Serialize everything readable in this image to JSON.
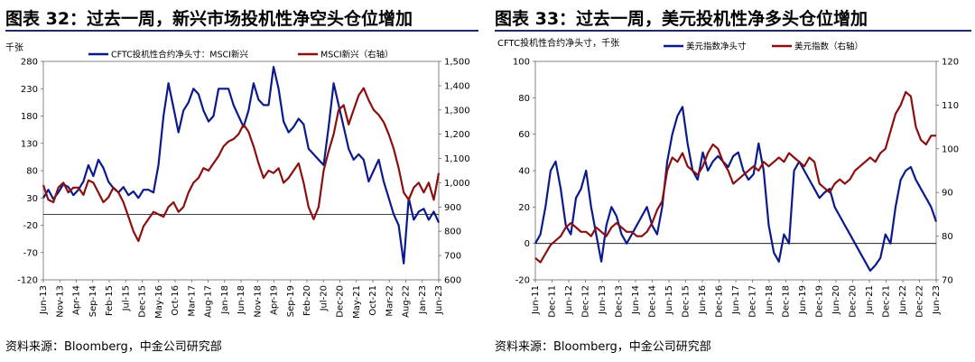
{
  "chart_data": [
    {
      "type": "line",
      "title": "图表 32：过去一周，新兴市场投机性净空头仓位增加",
      "source": "资料来源：Bloomberg，中金公司研究部",
      "y_unit_left": "千张",
      "x_tick_labels": [
        "Jun-13",
        "Nov-13",
        "Apr-14",
        "Sep-14",
        "Feb-15",
        "Jul-15",
        "Dec-15",
        "May-16",
        "Oct-16",
        "Mar-17",
        "Aug-17",
        "Jan-18",
        "Jun-18",
        "Nov-18",
        "Apr-19",
        "Sep-19",
        "Feb-20",
        "Jul-20",
        "Dec-20",
        "May-21",
        "Oct-21",
        "Mar-22",
        "Aug-22",
        "Jan-23",
        "Jun-23"
      ],
      "y_left": {
        "min": -120,
        "max": 280,
        "ticks": [
          -120,
          -70,
          -20,
          30,
          80,
          130,
          180,
          230,
          280
        ]
      },
      "y_right": {
        "min": 600,
        "max": 1500,
        "ticks": [
          600,
          700,
          800,
          900,
          1000,
          1100,
          1200,
          1300,
          1400,
          1500
        ]
      },
      "series": [
        {
          "name": "CFTC投机性合约净头寸：MSCI新兴",
          "axis": "left",
          "color": "#0a1a8c",
          "values": [
            30,
            45,
            28,
            40,
            55,
            50,
            35,
            45,
            60,
            90,
            70,
            100,
            85,
            60,
            48,
            40,
            50,
            35,
            42,
            30,
            45,
            45,
            40,
            90,
            180,
            240,
            195,
            150,
            190,
            205,
            230,
            220,
            190,
            170,
            180,
            230,
            230,
            230,
            200,
            180,
            160,
            190,
            240,
            210,
            200,
            200,
            270,
            230,
            170,
            150,
            160,
            175,
            165,
            120,
            110,
            100,
            90,
            160,
            240,
            200,
            160,
            120,
            100,
            110,
            100,
            60,
            80,
            100,
            60,
            30,
            0,
            -20,
            -90,
            30,
            -10,
            5,
            10,
            -10,
            5,
            -15
          ]
        },
        {
          "name": "MSCI新兴（右轴）",
          "axis": "right",
          "color": "#8b0f0f",
          "values": [
            990,
            930,
            920,
            980,
            1000,
            960,
            980,
            980,
            950,
            1010,
            1000,
            960,
            920,
            940,
            980,
            960,
            920,
            860,
            800,
            760,
            820,
            850,
            880,
            870,
            860,
            900,
            920,
            880,
            900,
            960,
            1000,
            1020,
            1060,
            1050,
            1080,
            1110,
            1150,
            1170,
            1180,
            1200,
            1240,
            1210,
            1150,
            1080,
            1020,
            1050,
            1040,
            1060,
            1000,
            1020,
            1050,
            1080,
            1000,
            900,
            850,
            900,
            1050,
            1130,
            1200,
            1300,
            1320,
            1240,
            1300,
            1360,
            1390,
            1340,
            1300,
            1280,
            1250,
            1200,
            1140,
            1060,
            960,
            930,
            980,
            1000,
            960,
            1000,
            930,
            1040
          ]
        }
      ],
      "legend": [
        "CFTC投机性合约净头寸：MSCI新兴",
        "MSCI新兴（右轴）"
      ]
    },
    {
      "type": "line",
      "title": "图表 33：过去一周，美元投机性净多头仓位增加",
      "source": "资料来源：Bloomberg，中金公司研究部",
      "y_unit_left": "CFTC投机性合约净头寸，千张",
      "x_tick_labels": [
        "Jun-11",
        "Dec-11",
        "Jun-12",
        "Dec-12",
        "Jun-13",
        "Dec-13",
        "Jun-14",
        "Dec-14",
        "Jun-15",
        "Dec-15",
        "Jun-16",
        "Dec-16",
        "Jun-17",
        "Dec-17",
        "Jun-18",
        "Dec-18",
        "Jun-19",
        "Dec-19",
        "Jun-20",
        "Dec-20",
        "Jun-21",
        "Dec-21",
        "Jun-22",
        "Dec-22",
        "Jun-23"
      ],
      "y_left": {
        "min": -20,
        "max": 100,
        "ticks": [
          -20,
          0,
          20,
          40,
          60,
          80,
          100
        ]
      },
      "y_right": {
        "min": 70,
        "max": 120,
        "ticks": [
          70,
          80,
          90,
          100,
          110,
          120
        ]
      },
      "series": [
        {
          "name": "美元指数净头寸",
          "axis": "left",
          "color": "#0a1a8c",
          "values": [
            0,
            5,
            20,
            40,
            45,
            30,
            10,
            5,
            25,
            30,
            40,
            20,
            5,
            -10,
            10,
            20,
            15,
            5,
            0,
            5,
            10,
            15,
            20,
            10,
            5,
            20,
            45,
            60,
            70,
            75,
            55,
            40,
            35,
            50,
            40,
            45,
            48,
            45,
            42,
            48,
            50,
            40,
            35,
            38,
            55,
            40,
            10,
            -5,
            -10,
            5,
            0,
            40,
            45,
            40,
            35,
            30,
            25,
            28,
            30,
            20,
            15,
            10,
            5,
            0,
            -5,
            -10,
            -15,
            -12,
            -8,
            5,
            0,
            20,
            35,
            40,
            42,
            35,
            30,
            25,
            20,
            12
          ]
        },
        {
          "name": "美元指数（右轴）",
          "axis": "right",
          "color": "#8b0f0f",
          "values": [
            75,
            74,
            76,
            78,
            79,
            80,
            82,
            83,
            82,
            81,
            81,
            80,
            82,
            81,
            80,
            82,
            83,
            82,
            81,
            81,
            80,
            80,
            81,
            83,
            86,
            88,
            95,
            98,
            97,
            99,
            96,
            95,
            94,
            96,
            99,
            101,
            100,
            97,
            95,
            92,
            93,
            94,
            95,
            96,
            95,
            97,
            96,
            97,
            98,
            97,
            99,
            98,
            97,
            96,
            98,
            97,
            92,
            91,
            90,
            92,
            93,
            92,
            93,
            95,
            96,
            97,
            98,
            97,
            99,
            100,
            104,
            108,
            110,
            113,
            112,
            105,
            102,
            101,
            103,
            103
          ]
        }
      ],
      "legend": [
        "美元指数净头寸",
        "美元指数（右轴）"
      ]
    }
  ]
}
